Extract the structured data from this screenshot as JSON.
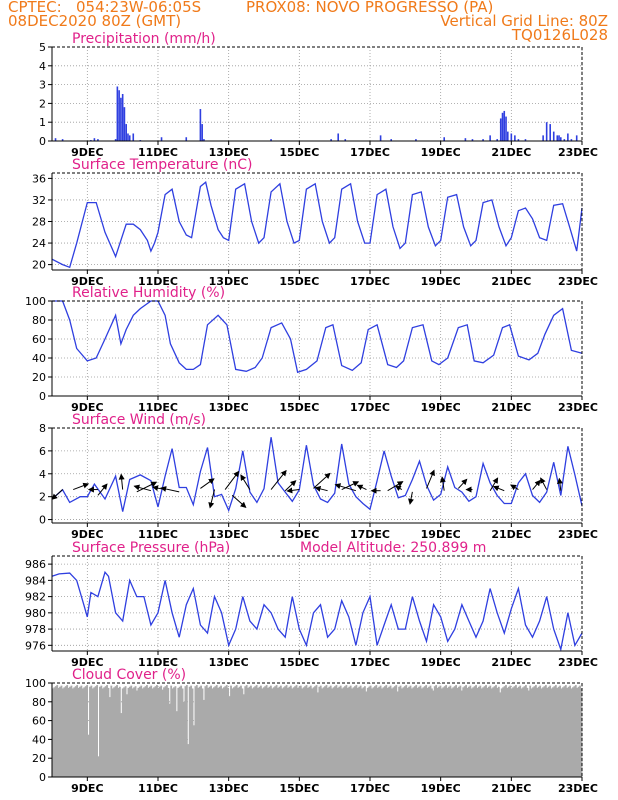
{
  "header": {
    "line1_left": "CPTEC:   054:23W-06:05S",
    "line1_center": "PROX08: NOVO PROGRESSO (PA)",
    "line2_left": "08DEC2020 80Z (GMT)",
    "line2_right": "Vertical Grid Line: 80Z",
    "line3_right": "TQ0126L028"
  },
  "x_ticks": [
    "9DEC",
    "11DEC",
    "13DEC",
    "15DEC",
    "17DEC",
    "19DEC",
    "21DEC",
    "23DEC"
  ],
  "x_range": [
    8,
    23
  ],
  "colors": {
    "header": "#f07a1a",
    "title": "#e0218a",
    "line": "#2f3fe0",
    "cloud": "#aaaaaa",
    "arrow": "#000000"
  },
  "chart_data": [
    {
      "type": "bar",
      "title": "Precipitation (mm/h)",
      "ylim": [
        0,
        5
      ],
      "yticks": [
        "0",
        "1",
        "2",
        "3",
        "4",
        "5"
      ],
      "x": [
        8.1,
        8.3,
        9.1,
        9.2,
        9.3,
        9.8,
        9.85,
        9.9,
        9.95,
        10.0,
        10.05,
        10.1,
        10.15,
        10.2,
        10.3,
        10.5,
        11.1,
        11.8,
        12.2,
        12.25,
        12.3,
        14.2,
        15.9,
        16.1,
        16.3,
        17.3,
        17.6,
        18.3,
        19.1,
        19.7,
        19.9,
        20.2,
        20.4,
        20.6,
        20.7,
        20.75,
        20.8,
        20.85,
        20.9,
        21.0,
        21.1,
        21.2,
        21.4,
        21.9,
        22.0,
        22.1,
        22.2,
        22.3,
        22.35,
        22.4,
        22.5,
        22.6,
        22.7,
        22.85
      ],
      "values": [
        0.15,
        0.1,
        0.05,
        0.15,
        0.1,
        0.1,
        2.9,
        2.7,
        2.3,
        2.5,
        1.8,
        0.9,
        0.4,
        0.3,
        0.4,
        0.05,
        0.2,
        0.2,
        1.7,
        0.9,
        0.1,
        0.1,
        0.1,
        0.4,
        0.1,
        0.3,
        0.1,
        0.1,
        0.2,
        0.15,
        0.1,
        0.1,
        0.3,
        0.1,
        1.2,
        1.5,
        1.6,
        1.3,
        0.5,
        0.4,
        0.3,
        0.1,
        0.1,
        0.3,
        1.0,
        0.9,
        0.5,
        0.3,
        0.3,
        0.2,
        0.1,
        0.4,
        0.1,
        0.3
      ]
    },
    {
      "type": "line",
      "title": "Surface Temperature (nC)",
      "ylim": [
        19,
        37
      ],
      "yticks": [
        "20",
        "24",
        "28",
        "32",
        "36"
      ],
      "x": [
        8.0,
        8.3,
        8.5,
        8.7,
        9.0,
        9.25,
        9.5,
        9.8,
        9.9,
        10.1,
        10.3,
        10.5,
        10.7,
        10.8,
        10.9,
        11.0,
        11.2,
        11.4,
        11.6,
        11.8,
        11.95,
        12.2,
        12.35,
        12.5,
        12.7,
        12.85,
        13.0,
        13.2,
        13.45,
        13.65,
        13.85,
        14.0,
        14.2,
        14.45,
        14.65,
        14.85,
        15.0,
        15.2,
        15.45,
        15.65,
        15.85,
        16.0,
        16.2,
        16.45,
        16.65,
        16.85,
        17.0,
        17.2,
        17.45,
        17.65,
        17.85,
        18.0,
        18.2,
        18.45,
        18.65,
        18.85,
        19.0,
        19.2,
        19.45,
        19.65,
        19.85,
        20.0,
        20.2,
        20.45,
        20.65,
        20.85,
        21.0,
        21.2,
        21.4,
        21.6,
        21.8,
        22.0,
        22.2,
        22.45,
        22.65,
        22.85,
        23.0
      ],
      "values": [
        21,
        20,
        19.5,
        24,
        31.5,
        31.5,
        26,
        21.5,
        23.5,
        27.5,
        27.5,
        26.5,
        24.5,
        22.5,
        24,
        26,
        33,
        34,
        28,
        25.5,
        25,
        34.5,
        35.3,
        31,
        26.5,
        25,
        24.5,
        34,
        35,
        28,
        24,
        25,
        33.5,
        35,
        28,
        24,
        24.5,
        34,
        35,
        28,
        24,
        25,
        34,
        35,
        28,
        24,
        24,
        33,
        34,
        27,
        23,
        24,
        33,
        33.5,
        27,
        23.5,
        24.5,
        32.5,
        33,
        27,
        23.5,
        24.5,
        31.5,
        32,
        27,
        23.5,
        25,
        30,
        30.5,
        28.5,
        25,
        24.5,
        31,
        31.3,
        27,
        22.5,
        30.5
      ]
    },
    {
      "type": "line",
      "title": "Relative Humidity (%)",
      "ylim": [
        0,
        100
      ],
      "yticks": [
        "0",
        "20",
        "40",
        "60",
        "80",
        "100"
      ],
      "x": [
        8.0,
        8.3,
        8.5,
        8.7,
        9.0,
        9.25,
        9.5,
        9.8,
        9.95,
        10.1,
        10.3,
        10.5,
        10.8,
        11.0,
        11.2,
        11.35,
        11.6,
        11.8,
        12.0,
        12.2,
        12.4,
        12.7,
        12.95,
        13.2,
        13.5,
        13.75,
        13.95,
        14.2,
        14.5,
        14.75,
        14.95,
        15.2,
        15.5,
        15.75,
        15.95,
        16.2,
        16.5,
        16.75,
        16.95,
        17.2,
        17.5,
        17.75,
        17.95,
        18.2,
        18.5,
        18.75,
        18.95,
        19.2,
        19.5,
        19.75,
        19.95,
        20.2,
        20.5,
        20.75,
        20.95,
        21.2,
        21.5,
        21.75,
        21.95,
        22.2,
        22.45,
        22.7,
        23.0
      ],
      "values": [
        100,
        100,
        80,
        50,
        37,
        40,
        60,
        85,
        55,
        70,
        85,
        92,
        100,
        100,
        85,
        55,
        35,
        28,
        28,
        33,
        75,
        85,
        75,
        28,
        26,
        30,
        40,
        72,
        77,
        60,
        25,
        28,
        37,
        72,
        75,
        32,
        27,
        35,
        70,
        75,
        33,
        30,
        37,
        72,
        75,
        37,
        33,
        40,
        72,
        75,
        37,
        35,
        43,
        72,
        75,
        42,
        38,
        45,
        65,
        85,
        92,
        48,
        45
      ]
    },
    {
      "type": "line",
      "title": "Surface Wind (m/s)",
      "ylim": [
        -0.3,
        8
      ],
      "yticks": [
        "0",
        "2",
        "4",
        "6",
        "8"
      ],
      "x": [
        8.0,
        8.3,
        8.5,
        8.8,
        9.0,
        9.2,
        9.5,
        9.8,
        10.0,
        10.2,
        10.5,
        10.8,
        11.0,
        11.2,
        11.4,
        11.6,
        11.8,
        12.0,
        12.2,
        12.4,
        12.6,
        12.8,
        13.0,
        13.2,
        13.4,
        13.6,
        13.8,
        14.0,
        14.2,
        14.4,
        14.6,
        14.8,
        15.0,
        15.2,
        15.4,
        15.6,
        15.8,
        16.0,
        16.2,
        16.4,
        16.6,
        16.8,
        17.0,
        17.2,
        17.4,
        17.6,
        17.8,
        18.0,
        18.2,
        18.4,
        18.6,
        18.8,
        19.0,
        19.2,
        19.4,
        19.6,
        19.8,
        20.0,
        20.2,
        20.4,
        20.6,
        20.8,
        21.0,
        21.2,
        21.4,
        21.6,
        21.8,
        22.0,
        22.2,
        22.4,
        22.6,
        22.8,
        23.0
      ],
      "values": [
        1.8,
        2.6,
        1.5,
        2.0,
        2.0,
        3.1,
        1.8,
        3.8,
        0.7,
        3.5,
        3.9,
        3.4,
        1.1,
        3.8,
        6.2,
        2.8,
        2.8,
        1.3,
        4.2,
        6.3,
        2.0,
        2.2,
        0.8,
        2.7,
        6.0,
        2.4,
        1.5,
        2.7,
        7.2,
        3.2,
        2.4,
        1.6,
        2.6,
        6.5,
        3.0,
        1.8,
        1.5,
        2.3,
        6.6,
        3.1,
        2.0,
        1.4,
        0.9,
        3.4,
        6.0,
        3.8,
        1.9,
        2.1,
        3.5,
        5.1,
        3.0,
        1.7,
        2.2,
        4.6,
        2.8,
        2.4,
        1.6,
        2.0,
        4.9,
        3.2,
        2.1,
        1.4,
        1.4,
        3.2,
        4.0,
        2.1,
        1.5,
        2.4,
        5.0,
        2.1,
        6.4,
        3.9,
        1.2
      ],
      "vectors": [
        [
          8.3,
          0.7,
          -3.5,
          3.2
        ],
        [
          8.6,
          0.7,
          5,
          -1.9
        ],
        [
          9.3,
          0.7,
          -3,
          0
        ],
        [
          9.3,
          0.2,
          3,
          -3.7
        ],
        [
          10.0,
          0.7,
          -0.5,
          -5
        ],
        [
          10.4,
          0.5,
          6.5,
          -3.2
        ],
        [
          10.8,
          0.6,
          -5.5,
          -1.5
        ],
        [
          11.2,
          0.7,
          -4,
          -0.8
        ],
        [
          11.6,
          0.5,
          -6,
          -1.3
        ],
        [
          12.2,
          0.8,
          4.5,
          -3.2
        ],
        [
          12.6,
          0.7,
          -1.5,
          6
        ],
        [
          12.9,
          0.7,
          4.5,
          -6
        ],
        [
          13.1,
          0.2,
          4.5,
          4
        ],
        [
          13.6,
          0.7,
          -3,
          -4.8
        ],
        [
          14.2,
          0.7,
          5,
          -6.3
        ],
        [
          14.6,
          0.6,
          3.5,
          -3.3
        ],
        [
          15.0,
          0.7,
          -4,
          0.5
        ],
        [
          15.4,
          0.8,
          5.5,
          -5
        ],
        [
          15.8,
          0.6,
          -4,
          -1
        ],
        [
          16.2,
          0.7,
          5.5,
          -2.6
        ],
        [
          16.6,
          0.6,
          -6.8,
          -2
        ],
        [
          16.9,
          0.7,
          -3,
          -1.4
        ],
        [
          17.3,
          0.6,
          -3,
          0
        ],
        [
          17.5,
          0.6,
          5,
          -3
        ],
        [
          17.9,
          0.7,
          -2,
          -1.2
        ],
        [
          18.2,
          0.5,
          -0.8,
          4
        ],
        [
          18.6,
          0.8,
          2.5,
          -6
        ],
        [
          19.1,
          0.6,
          -0.7,
          -4.5
        ],
        [
          19.5,
          0.8,
          2.8,
          -3
        ],
        [
          19.9,
          0.7,
          -2,
          0
        ],
        [
          20.4,
          0.6,
          2.5,
          -4.2
        ],
        [
          20.8,
          0.6,
          -3.5,
          -1.4
        ],
        [
          21.2,
          0.7,
          -2.5,
          -1.5
        ],
        [
          21.6,
          0.7,
          2.5,
          -3
        ],
        [
          22.0,
          0.7,
          -2,
          -3.8
        ],
        [
          22.4,
          0.6,
          -0.5,
          -4
        ]
      ]
    },
    {
      "type": "line",
      "title": "Surface Pressure (hPa)",
      "subtitle": "Model Altitude: 250.899 m",
      "ylim": [
        975.3,
        987
      ],
      "yticks": [
        "976",
        "978",
        "980",
        "982",
        "984",
        "986"
      ],
      "x": [
        8.0,
        8.2,
        8.5,
        8.7,
        8.9,
        9.0,
        9.1,
        9.3,
        9.5,
        9.6,
        9.8,
        10.0,
        10.2,
        10.4,
        10.6,
        10.8,
        11.0,
        11.2,
        11.4,
        11.6,
        11.8,
        12.0,
        12.2,
        12.4,
        12.6,
        12.8,
        13.0,
        13.2,
        13.4,
        13.6,
        13.8,
        14.0,
        14.2,
        14.4,
        14.6,
        14.8,
        15.0,
        15.2,
        15.4,
        15.6,
        15.8,
        16.0,
        16.2,
        16.4,
        16.6,
        16.8,
        17.0,
        17.2,
        17.4,
        17.6,
        17.8,
        18.0,
        18.2,
        18.4,
        18.6,
        18.8,
        19.0,
        19.2,
        19.4,
        19.6,
        19.8,
        20.0,
        20.2,
        20.4,
        20.6,
        20.8,
        21.0,
        21.2,
        21.4,
        21.6,
        21.8,
        22.0,
        22.2,
        22.4,
        22.6,
        22.8,
        23.0
      ],
      "values": [
        984.5,
        984.8,
        984.9,
        984,
        981,
        979.5,
        982.5,
        982,
        985,
        984.5,
        980,
        979,
        984,
        982,
        982,
        978.5,
        980,
        984,
        980,
        977,
        981,
        983,
        978.5,
        977.5,
        982,
        980,
        976,
        978,
        982,
        979,
        978,
        981,
        980,
        978,
        977,
        982,
        978,
        976,
        980,
        981,
        977,
        978,
        981.5,
        979.5,
        976,
        980,
        982,
        976,
        978.5,
        981,
        978,
        978,
        982,
        979,
        976.5,
        981,
        979.5,
        976.5,
        978,
        981,
        979,
        977,
        979,
        983,
        980,
        977.5,
        980.5,
        983,
        978.5,
        977,
        979,
        982,
        978,
        975.5,
        980,
        976,
        977.5
      ]
    },
    {
      "type": "bar",
      "title": "Cloud Cover (%)",
      "ylim": [
        0,
        100
      ],
      "yticks": [
        "0",
        "20",
        "40",
        "60",
        "80",
        "100"
      ],
      "base": 96,
      "dips": [
        [
          9.0,
          45
        ],
        [
          9.3,
          22
        ],
        [
          9.6,
          85
        ],
        [
          9.95,
          68
        ],
        [
          10.1,
          88
        ],
        [
          10.4,
          92
        ],
        [
          11.1,
          93
        ],
        [
          11.3,
          78
        ],
        [
          11.5,
          70
        ],
        [
          11.7,
          80
        ],
        [
          11.85,
          35
        ],
        [
          12.0,
          55
        ],
        [
          12.3,
          82
        ],
        [
          13.0,
          86
        ],
        [
          13.4,
          88
        ],
        [
          15.5,
          90
        ],
        [
          16.9,
          91
        ],
        [
          17.8,
          91
        ],
        [
          18.8,
          92
        ],
        [
          19.6,
          92
        ],
        [
          20.7,
          90
        ],
        [
          21.5,
          92
        ]
      ]
    }
  ]
}
